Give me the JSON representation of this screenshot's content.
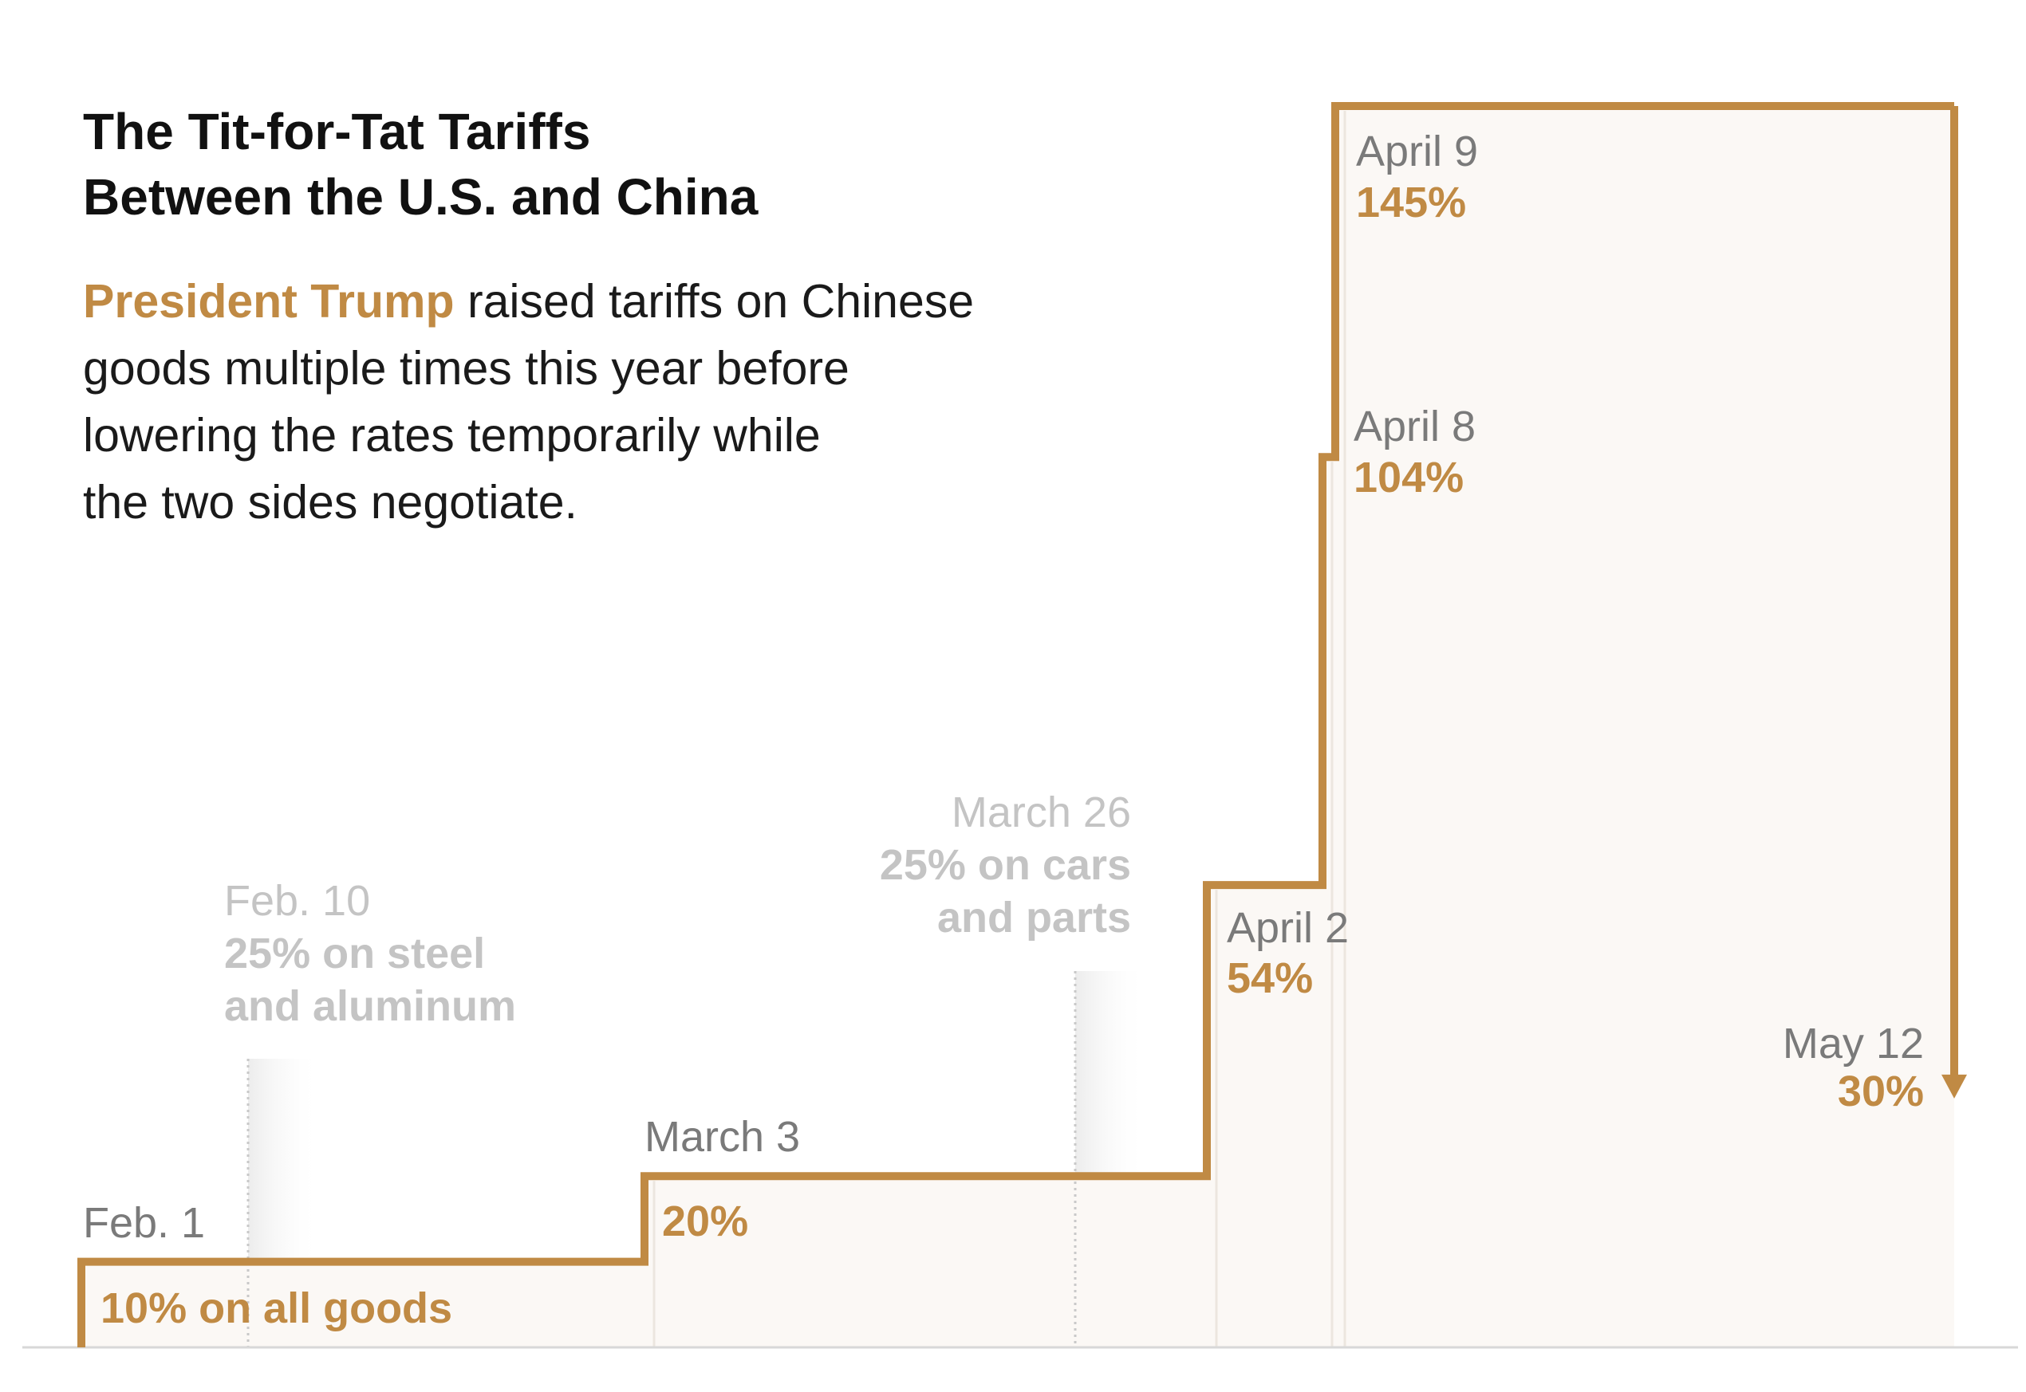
{
  "title_lines": [
    "The Tit-for-Tat Tariffs",
    "Between the U.S. and China"
  ],
  "subtitle": {
    "highlight": "President Trump",
    "line1_rest": " raised tariffs on Chinese",
    "line2": "goods multiple times this year before",
    "line3": "lowering the rates temporarily while",
    "line4": "the two sides negotiate."
  },
  "colors": {
    "accent": "#c08a44",
    "fill": "#fbf8f5",
    "muted_label": "#c4c4c4",
    "date_label": "#7a7a7a",
    "baseline": "#d8d8d8",
    "text": "#111111"
  },
  "chart_data": {
    "type": "step",
    "series": [
      {
        "values": [
          {
            "date": "Feb. 1",
            "value_label": "10% on all goods",
            "rate": 10
          },
          {
            "date": "March 3",
            "value_label": "20%",
            "rate": 20
          },
          {
            "date": "April 2",
            "value_label": "54%",
            "rate": 54
          },
          {
            "date": "April 8",
            "value_label": "104%",
            "rate": 104
          },
          {
            "date": "April 9",
            "value_label": "145%",
            "rate": 145
          },
          {
            "date": "May 12",
            "value_label": "30%",
            "rate": 30
          }
        ]
      }
    ],
    "annotations": [
      {
        "date": "Feb. 10",
        "lines": [
          "25% on steel",
          "and aluminum"
        ]
      },
      {
        "date": "March 26",
        "lines": [
          "25% on cars",
          "and parts"
        ]
      }
    ]
  }
}
